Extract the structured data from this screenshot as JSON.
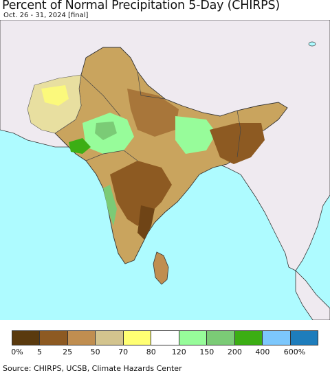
{
  "title": "Percent of Normal Precipitation 5-Day (CHIRPS)",
  "subtitle": "Oct. 26 - 31, 2024 [final]",
  "source": "Source: CHIRPS, UCSB, Climate Hazards Center",
  "colors": {
    "ocean": "#aefbff",
    "land_outside": "#efeaf0",
    "border": "#333333"
  },
  "legend": {
    "colors": [
      "#5a3a0e",
      "#8d5a22",
      "#c08e50",
      "#d3c48e",
      "#ffff73",
      "#ffffff",
      "#97fc9a",
      "#7bcb76",
      "#3cae14",
      "#7cc7fc",
      "#1e7dbc"
    ],
    "labels": [
      "0%",
      "5",
      "25",
      "50",
      "70",
      "80",
      "120",
      "150",
      "200",
      "400",
      "600%"
    ]
  }
}
